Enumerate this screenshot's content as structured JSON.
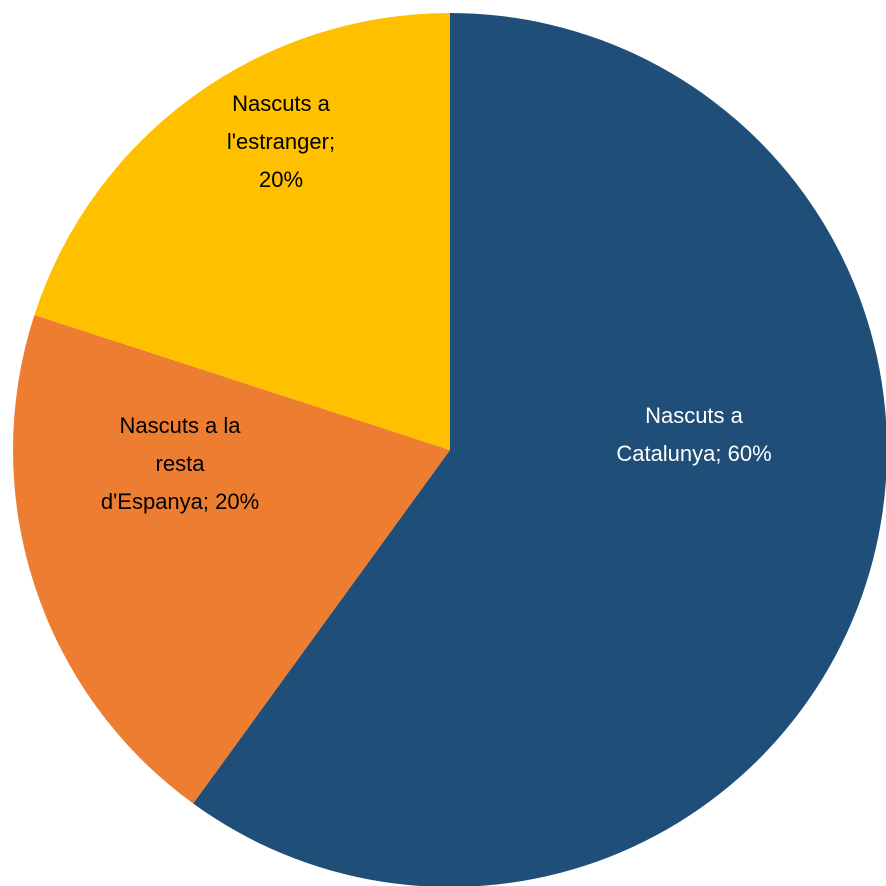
{
  "chart_data": {
    "type": "pie",
    "slices": [
      {
        "name": "Nascuts a Catalunya",
        "value": 60,
        "color": "#1F4E79",
        "label_color": "#FFFFFF",
        "label_lines": [
          "Nascuts a",
          "Catalunya; 60%"
        ]
      },
      {
        "name": "Nascuts a la resta d'Espanya",
        "value": 20,
        "color": "#ED7D31",
        "label_color": "#000000",
        "label_lines": [
          "Nascuts a la",
          "resta",
          "d'Espanya; 20%"
        ]
      },
      {
        "name": "Nascuts a l'estranger",
        "value": 20,
        "color": "#FFC000",
        "label_color": "#000000",
        "label_lines": [
          "Nascuts a",
          "l'estranger;",
          "20%"
        ]
      }
    ],
    "start_angle": "12 o'clock",
    "direction": "clockwise",
    "legend": "none",
    "title": ""
  }
}
